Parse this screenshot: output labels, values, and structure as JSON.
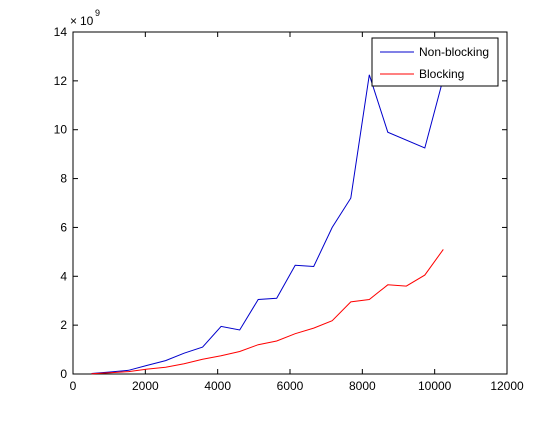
{
  "chart_data": {
    "type": "line",
    "title": "",
    "xlabel": "",
    "ylabel": "",
    "xlim": [
      0,
      12000
    ],
    "ylim": [
      0,
      14
    ],
    "x_ticks": [
      0,
      2000,
      4000,
      6000,
      8000,
      10000,
      12000
    ],
    "y_ticks": [
      0,
      2,
      4,
      6,
      8,
      10,
      12,
      14
    ],
    "y_multiplier": "x 10^9",
    "grid": false,
    "legend_position": "top-right",
    "series": [
      {
        "name": "Non-blocking",
        "color": "#0000cc",
        "points": [
          [
            512,
            0.02
          ],
          [
            1024,
            0.08
          ],
          [
            1536,
            0.15
          ],
          [
            2048,
            0.35
          ],
          [
            2560,
            0.55
          ],
          [
            3072,
            0.85
          ],
          [
            3584,
            1.1
          ],
          [
            4096,
            1.95
          ],
          [
            4608,
            1.8
          ],
          [
            5120,
            3.05
          ],
          [
            5632,
            3.1
          ],
          [
            6144,
            4.45
          ],
          [
            6656,
            4.4
          ],
          [
            7168,
            6.0
          ],
          [
            7680,
            7.2
          ],
          [
            8192,
            12.25
          ],
          [
            8704,
            9.9
          ],
          [
            9728,
            9.25
          ],
          [
            10240,
            12.1
          ]
        ]
      },
      {
        "name": "Blocking",
        "color": "#ff0000",
        "points": [
          [
            512,
            0.01
          ],
          [
            1024,
            0.05
          ],
          [
            1536,
            0.1
          ],
          [
            2048,
            0.2
          ],
          [
            2560,
            0.28
          ],
          [
            3072,
            0.42
          ],
          [
            3584,
            0.6
          ],
          [
            4096,
            0.75
          ],
          [
            4608,
            0.92
          ],
          [
            5120,
            1.2
          ],
          [
            5632,
            1.35
          ],
          [
            6144,
            1.65
          ],
          [
            6656,
            1.88
          ],
          [
            7168,
            2.18
          ],
          [
            7680,
            2.95
          ],
          [
            8192,
            3.05
          ],
          [
            8704,
            3.65
          ],
          [
            9216,
            3.6
          ],
          [
            9728,
            4.05
          ],
          [
            10240,
            5.1
          ]
        ]
      }
    ]
  }
}
